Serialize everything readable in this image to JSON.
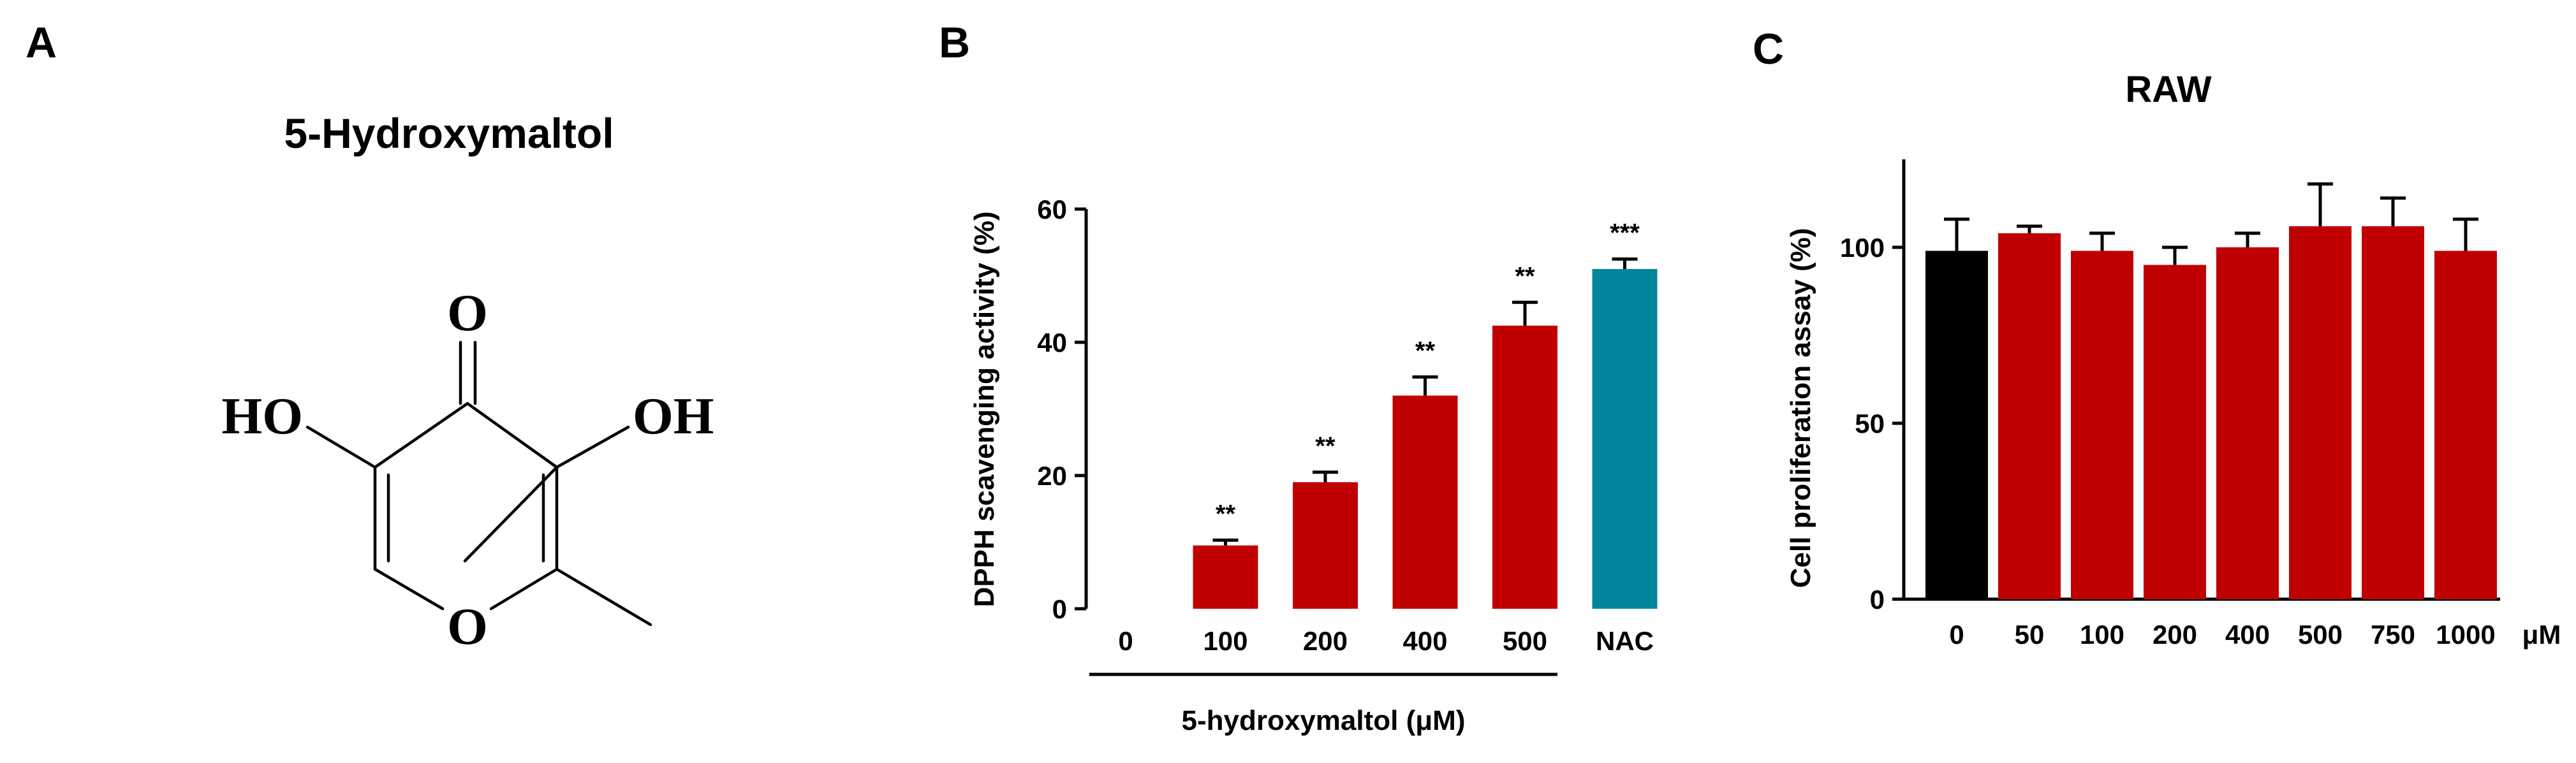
{
  "panels": {
    "a_letter": "A",
    "b_letter": "B",
    "c_letter": "C"
  },
  "structure": {
    "name": "5-Hydroxymaltol",
    "atom_o_top": "O",
    "atom_ho_left": "HO",
    "atom_oh_right": "OH",
    "atom_o_ring": "O"
  },
  "colors": {
    "red": "#C00000",
    "teal": "#00859B",
    "black": "#000000"
  },
  "chart_data": [
    {
      "id": "B",
      "type": "bar",
      "title": "",
      "ylabel": "DPPH scavenging activity (%)",
      "xlabel": "5-hydroxymaltol (μM)",
      "ylim": [
        0,
        60
      ],
      "yticks": [
        "0",
        "20",
        "40",
        "60"
      ],
      "categories": [
        "0",
        "100",
        "200",
        "400",
        "500",
        "NAC"
      ],
      "values": [
        0,
        9.5,
        19,
        32,
        42.5,
        51
      ],
      "errors": [
        0,
        0.8,
        1.5,
        2.8,
        3.5,
        1.5
      ],
      "significance": [
        "",
        "**",
        "**",
        "**",
        "**",
        "***"
      ],
      "bar_colors": [
        "#C00000",
        "#C00000",
        "#C00000",
        "#C00000",
        "#C00000",
        "#00859B"
      ]
    },
    {
      "id": "C",
      "type": "bar",
      "title": "RAW",
      "ylabel": "Cell proliferation assay (%)",
      "xunit": "μM",
      "ylim": [
        0,
        125
      ],
      "yticks": [
        "0",
        "50",
        "100"
      ],
      "categories": [
        "0",
        "50",
        "100",
        "200",
        "400",
        "500",
        "750",
        "1000"
      ],
      "values": [
        99,
        104,
        99,
        95,
        100,
        106,
        106,
        99
      ],
      "errors": [
        9,
        2,
        5,
        5,
        4,
        12,
        8,
        9
      ],
      "bar_colors": [
        "#000000",
        "#C00000",
        "#C00000",
        "#C00000",
        "#C00000",
        "#C00000",
        "#C00000",
        "#C00000"
      ]
    }
  ]
}
